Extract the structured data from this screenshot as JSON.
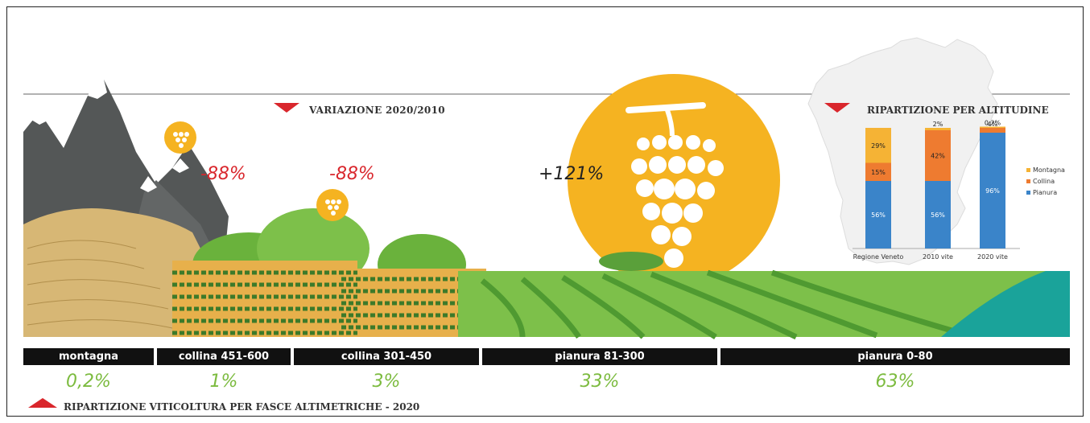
{
  "titles": {
    "variazione": "VARIAZIONE 2020/2010",
    "ripartizione_altitudine": "RIPARTIZIONE PER ALTITUDINE",
    "ripartizione_fasce": "RIPARTIZIONE VITICOLTURA PER FASCE ALTIMETRICHE - 2020"
  },
  "variations": [
    "-88%",
    "-88%",
    "+121%"
  ],
  "chart_data": [
    {
      "type": "bar",
      "categories": [
        "montagna",
        "collina 451-600",
        "collina 301-450",
        "pianura 81-300",
        "pianura 0-80"
      ],
      "values": [
        0.2,
        1,
        3,
        33,
        63
      ],
      "labels": [
        "0,2%",
        "1%",
        "3%",
        "33%",
        "63%"
      ],
      "variation_labels": [
        "-88%",
        "-88%",
        "+121%"
      ]
    },
    {
      "type": "bar",
      "stacked": true,
      "title": "RIPARTIZIONE PER ALTITUDINE",
      "categories": [
        "Regione Veneto",
        "2010 vite",
        "2020 vite"
      ],
      "series": [
        {
          "name": "Pianura",
          "color": "#3a84c9",
          "values": [
            56,
            56,
            96
          ]
        },
        {
          "name": "Collina",
          "color": "#ee7b30",
          "values": [
            15,
            42,
            4
          ]
        },
        {
          "name": "Montagna",
          "color": "#f5b335",
          "values": [
            29,
            2,
            0.2
          ]
        }
      ],
      "data_labels": {
        "Pianura": [
          "56%",
          "56%",
          "96%"
        ],
        "Collina": [
          "15%",
          "42%",
          "4%"
        ],
        "Montagna": [
          "29%",
          "2%",
          "0,2%"
        ]
      },
      "legend_position": "right"
    }
  ],
  "colors": {
    "accent_red": "#d9262c",
    "green_pct": "#7cbb3f",
    "sun": "#f5b321",
    "band": "#111111"
  }
}
